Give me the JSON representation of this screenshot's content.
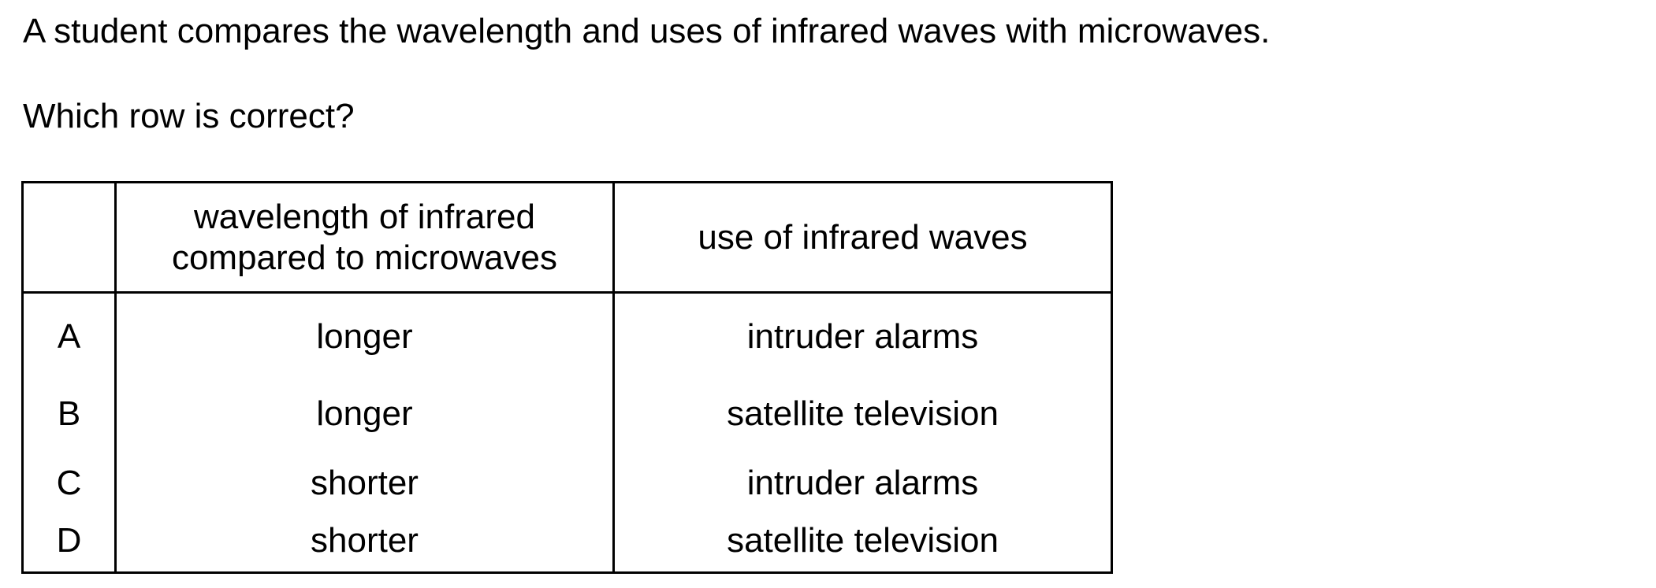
{
  "question": {
    "stem": "A student compares the wavelength and uses of infrared waves with microwaves.",
    "prompt": "Which row is correct?"
  },
  "table": {
    "headers": {
      "letter": "",
      "wavelength_line1": "wavelength of infrared",
      "wavelength_line2": "compared to microwaves",
      "use": "use of infrared waves"
    },
    "rows": [
      {
        "letter": "A",
        "wavelength": "longer",
        "use": "intruder alarms"
      },
      {
        "letter": "B",
        "wavelength": "longer",
        "use": "satellite television"
      },
      {
        "letter": "C",
        "wavelength": "shorter",
        "use": "intruder alarms"
      },
      {
        "letter": "D",
        "wavelength": "shorter",
        "use": "satellite television"
      }
    ]
  }
}
